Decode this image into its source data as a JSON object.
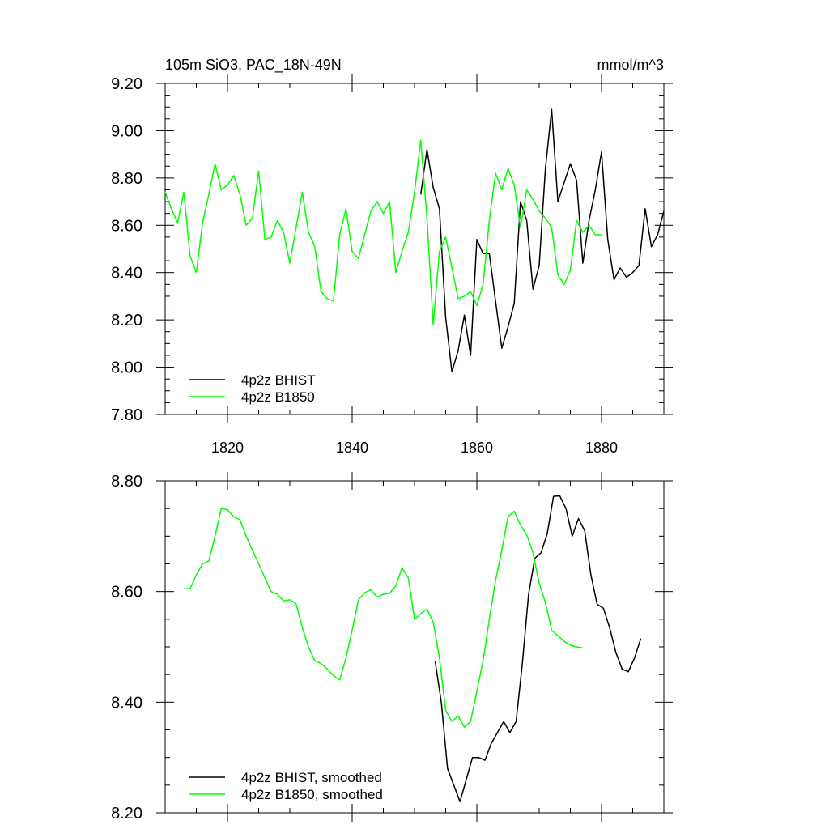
{
  "chart_data": [
    {
      "type": "line",
      "title_left": "105m SiO3, PAC_18N-49N",
      "title_right": "mmol/m^3",
      "xlim": [
        1810,
        1890
      ],
      "ylim": [
        7.8,
        9.2
      ],
      "y_ticks": [
        "7.80",
        "8.00",
        "8.20",
        "8.40",
        "8.60",
        "8.80",
        "9.00",
        "9.20"
      ],
      "x_ticks": [
        "1820",
        "1840",
        "1860",
        "1880"
      ],
      "legend_position": "bottom-left",
      "series": [
        {
          "name": "4p2z BHIST",
          "color": "#000000",
          "x": [
            1851,
            1852,
            1853,
            1854,
            1855,
            1856,
            1857,
            1858,
            1859,
            1860,
            1861,
            1862,
            1863,
            1864,
            1865,
            1866,
            1867,
            1868,
            1869,
            1870,
            1871,
            1872,
            1873,
            1874,
            1875,
            1876,
            1877,
            1878,
            1879,
            1880,
            1881,
            1882,
            1883,
            1884,
            1885,
            1886,
            1887,
            1888,
            1889,
            1890
          ],
          "y": [
            8.73,
            8.92,
            8.76,
            8.67,
            8.21,
            7.98,
            8.07,
            8.22,
            8.05,
            8.54,
            8.48,
            8.48,
            8.28,
            8.08,
            8.17,
            8.27,
            8.7,
            8.62,
            8.33,
            8.43,
            8.84,
            9.09,
            8.7,
            8.78,
            8.86,
            8.79,
            8.44,
            8.62,
            8.75,
            8.91,
            8.54,
            8.37,
            8.42,
            8.38,
            8.4,
            8.43,
            8.67,
            8.51,
            8.56,
            8.66
          ]
        },
        {
          "name": "4p2z B1850",
          "color": "#00ff00",
          "x": [
            1810,
            1811,
            1812,
            1813,
            1814,
            1815,
            1816,
            1817,
            1818,
            1819,
            1820,
            1821,
            1822,
            1823,
            1824,
            1825,
            1826,
            1827,
            1828,
            1829,
            1830,
            1831,
            1832,
            1833,
            1834,
            1835,
            1836,
            1837,
            1838,
            1839,
            1840,
            1841,
            1842,
            1843,
            1844,
            1845,
            1846,
            1847,
            1848,
            1849,
            1850,
            1851,
            1852,
            1853,
            1854,
            1855,
            1856,
            1857,
            1858,
            1859,
            1860,
            1861,
            1862,
            1863,
            1864,
            1865,
            1866,
            1867,
            1868,
            1869,
            1870,
            1871,
            1872,
            1873,
            1874,
            1875,
            1876,
            1877,
            1878,
            1879,
            1880
          ],
          "y": [
            8.74,
            8.67,
            8.61,
            8.74,
            8.47,
            8.4,
            8.61,
            8.73,
            8.86,
            8.75,
            8.77,
            8.81,
            8.73,
            8.6,
            8.63,
            8.83,
            8.54,
            8.55,
            8.62,
            8.57,
            8.44,
            8.59,
            8.74,
            8.57,
            8.51,
            8.32,
            8.29,
            8.28,
            8.56,
            8.67,
            8.49,
            8.46,
            8.56,
            8.66,
            8.7,
            8.65,
            8.7,
            8.4,
            8.49,
            8.57,
            8.74,
            8.96,
            8.63,
            8.18,
            8.49,
            8.55,
            8.42,
            8.29,
            8.3,
            8.32,
            8.26,
            8.35,
            8.62,
            8.82,
            8.75,
            8.84,
            8.77,
            8.59,
            8.75,
            8.71,
            8.66,
            8.63,
            8.59,
            8.39,
            8.35,
            8.41,
            8.62,
            8.57,
            8.6,
            8.56,
            8.56
          ]
        }
      ]
    },
    {
      "type": "line",
      "xlim": [
        1810,
        1890
      ],
      "ylim": [
        8.2,
        8.8
      ],
      "y_ticks": [
        "8.20",
        "8.40",
        "8.60",
        "8.80"
      ],
      "legend_position": "bottom-left",
      "series": [
        {
          "name": "4p2z BHIST, smoothed",
          "color": "#000000",
          "x": [
            1853.3,
            1854.3,
            1855.3,
            1856.3,
            1857.3,
            1858.3,
            1859.3,
            1860.3,
            1861.3,
            1862.3,
            1863.3,
            1864.3,
            1865.3,
            1866.3,
            1867.3,
            1868.3,
            1869.3,
            1870.3,
            1871.3,
            1872.3,
            1873.3,
            1874.3,
            1875.3,
            1876.3,
            1877.3,
            1878.3,
            1879.3,
            1880.3,
            1881.3,
            1882.3,
            1883.3,
            1884.3,
            1885.3,
            1886.3
          ],
          "y": [
            8.475,
            8.4,
            8.28,
            8.25,
            8.22,
            8.26,
            8.3,
            8.3,
            8.295,
            8.325,
            8.345,
            8.365,
            8.345,
            8.365,
            8.47,
            8.595,
            8.66,
            8.67,
            8.705,
            8.772,
            8.773,
            8.75,
            8.7,
            8.732,
            8.71,
            8.63,
            8.577,
            8.57,
            8.535,
            8.49,
            8.46,
            8.455,
            8.48,
            8.515
          ]
        },
        {
          "name": "4p2z B1850, smoothed",
          "color": "#00ff00",
          "x": [
            1813,
            1814,
            1815,
            1816,
            1817,
            1818,
            1819,
            1820,
            1821,
            1822,
            1823,
            1824,
            1825,
            1826,
            1827,
            1828,
            1829,
            1830,
            1831,
            1832,
            1833,
            1834,
            1835,
            1836,
            1837,
            1838,
            1839,
            1840,
            1841,
            1842,
            1843,
            1844,
            1845,
            1846,
            1847,
            1848,
            1849,
            1850,
            1851,
            1852,
            1853,
            1854,
            1855,
            1856,
            1857,
            1858,
            1859,
            1860,
            1861,
            1862,
            1863,
            1864,
            1865,
            1866,
            1867,
            1868,
            1869,
            1870,
            1871,
            1872,
            1873,
            1874,
            1875,
            1876,
            1877
          ],
          "y": [
            8.605,
            8.605,
            8.63,
            8.65,
            8.655,
            8.7,
            8.75,
            8.748,
            8.735,
            8.73,
            8.7,
            8.675,
            8.65,
            8.625,
            8.6,
            8.595,
            8.583,
            8.585,
            8.578,
            8.535,
            8.5,
            8.475,
            8.47,
            8.46,
            8.448,
            8.44,
            8.48,
            8.53,
            8.585,
            8.598,
            8.603,
            8.59,
            8.595,
            8.597,
            8.61,
            8.643,
            8.625,
            8.55,
            8.56,
            8.568,
            8.545,
            8.48,
            8.385,
            8.365,
            8.375,
            8.355,
            8.365,
            8.42,
            8.475,
            8.55,
            8.62,
            8.675,
            8.735,
            8.745,
            8.72,
            8.703,
            8.67,
            8.615,
            8.58,
            8.53,
            8.52,
            8.51,
            8.503,
            8.5,
            8.498
          ]
        }
      ]
    }
  ]
}
